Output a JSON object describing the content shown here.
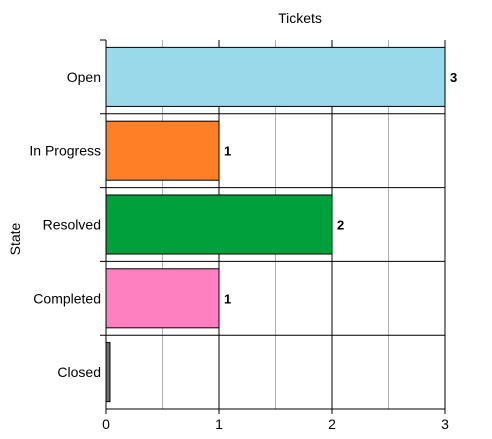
{
  "chart_data": {
    "type": "bar",
    "orientation": "horizontal",
    "title": "Tickets",
    "xlabel": "",
    "ylabel": "State",
    "xlim": [
      0,
      3
    ],
    "xticks": [
      0,
      1,
      2,
      3
    ],
    "xtick_labels": [
      "0",
      "1",
      "2",
      "3"
    ],
    "grid": "vertical",
    "categories": [
      "Open",
      "In Progress",
      "Resolved",
      "Completed",
      "Closed"
    ],
    "values": [
      3,
      1,
      2,
      1,
      0
    ],
    "data_labels": [
      "3",
      "1",
      "2",
      "1",
      ""
    ],
    "colors": [
      "#9ad9ea",
      "#ff7f27",
      "#00a03c",
      "#ff80c0",
      "#707070"
    ]
  }
}
